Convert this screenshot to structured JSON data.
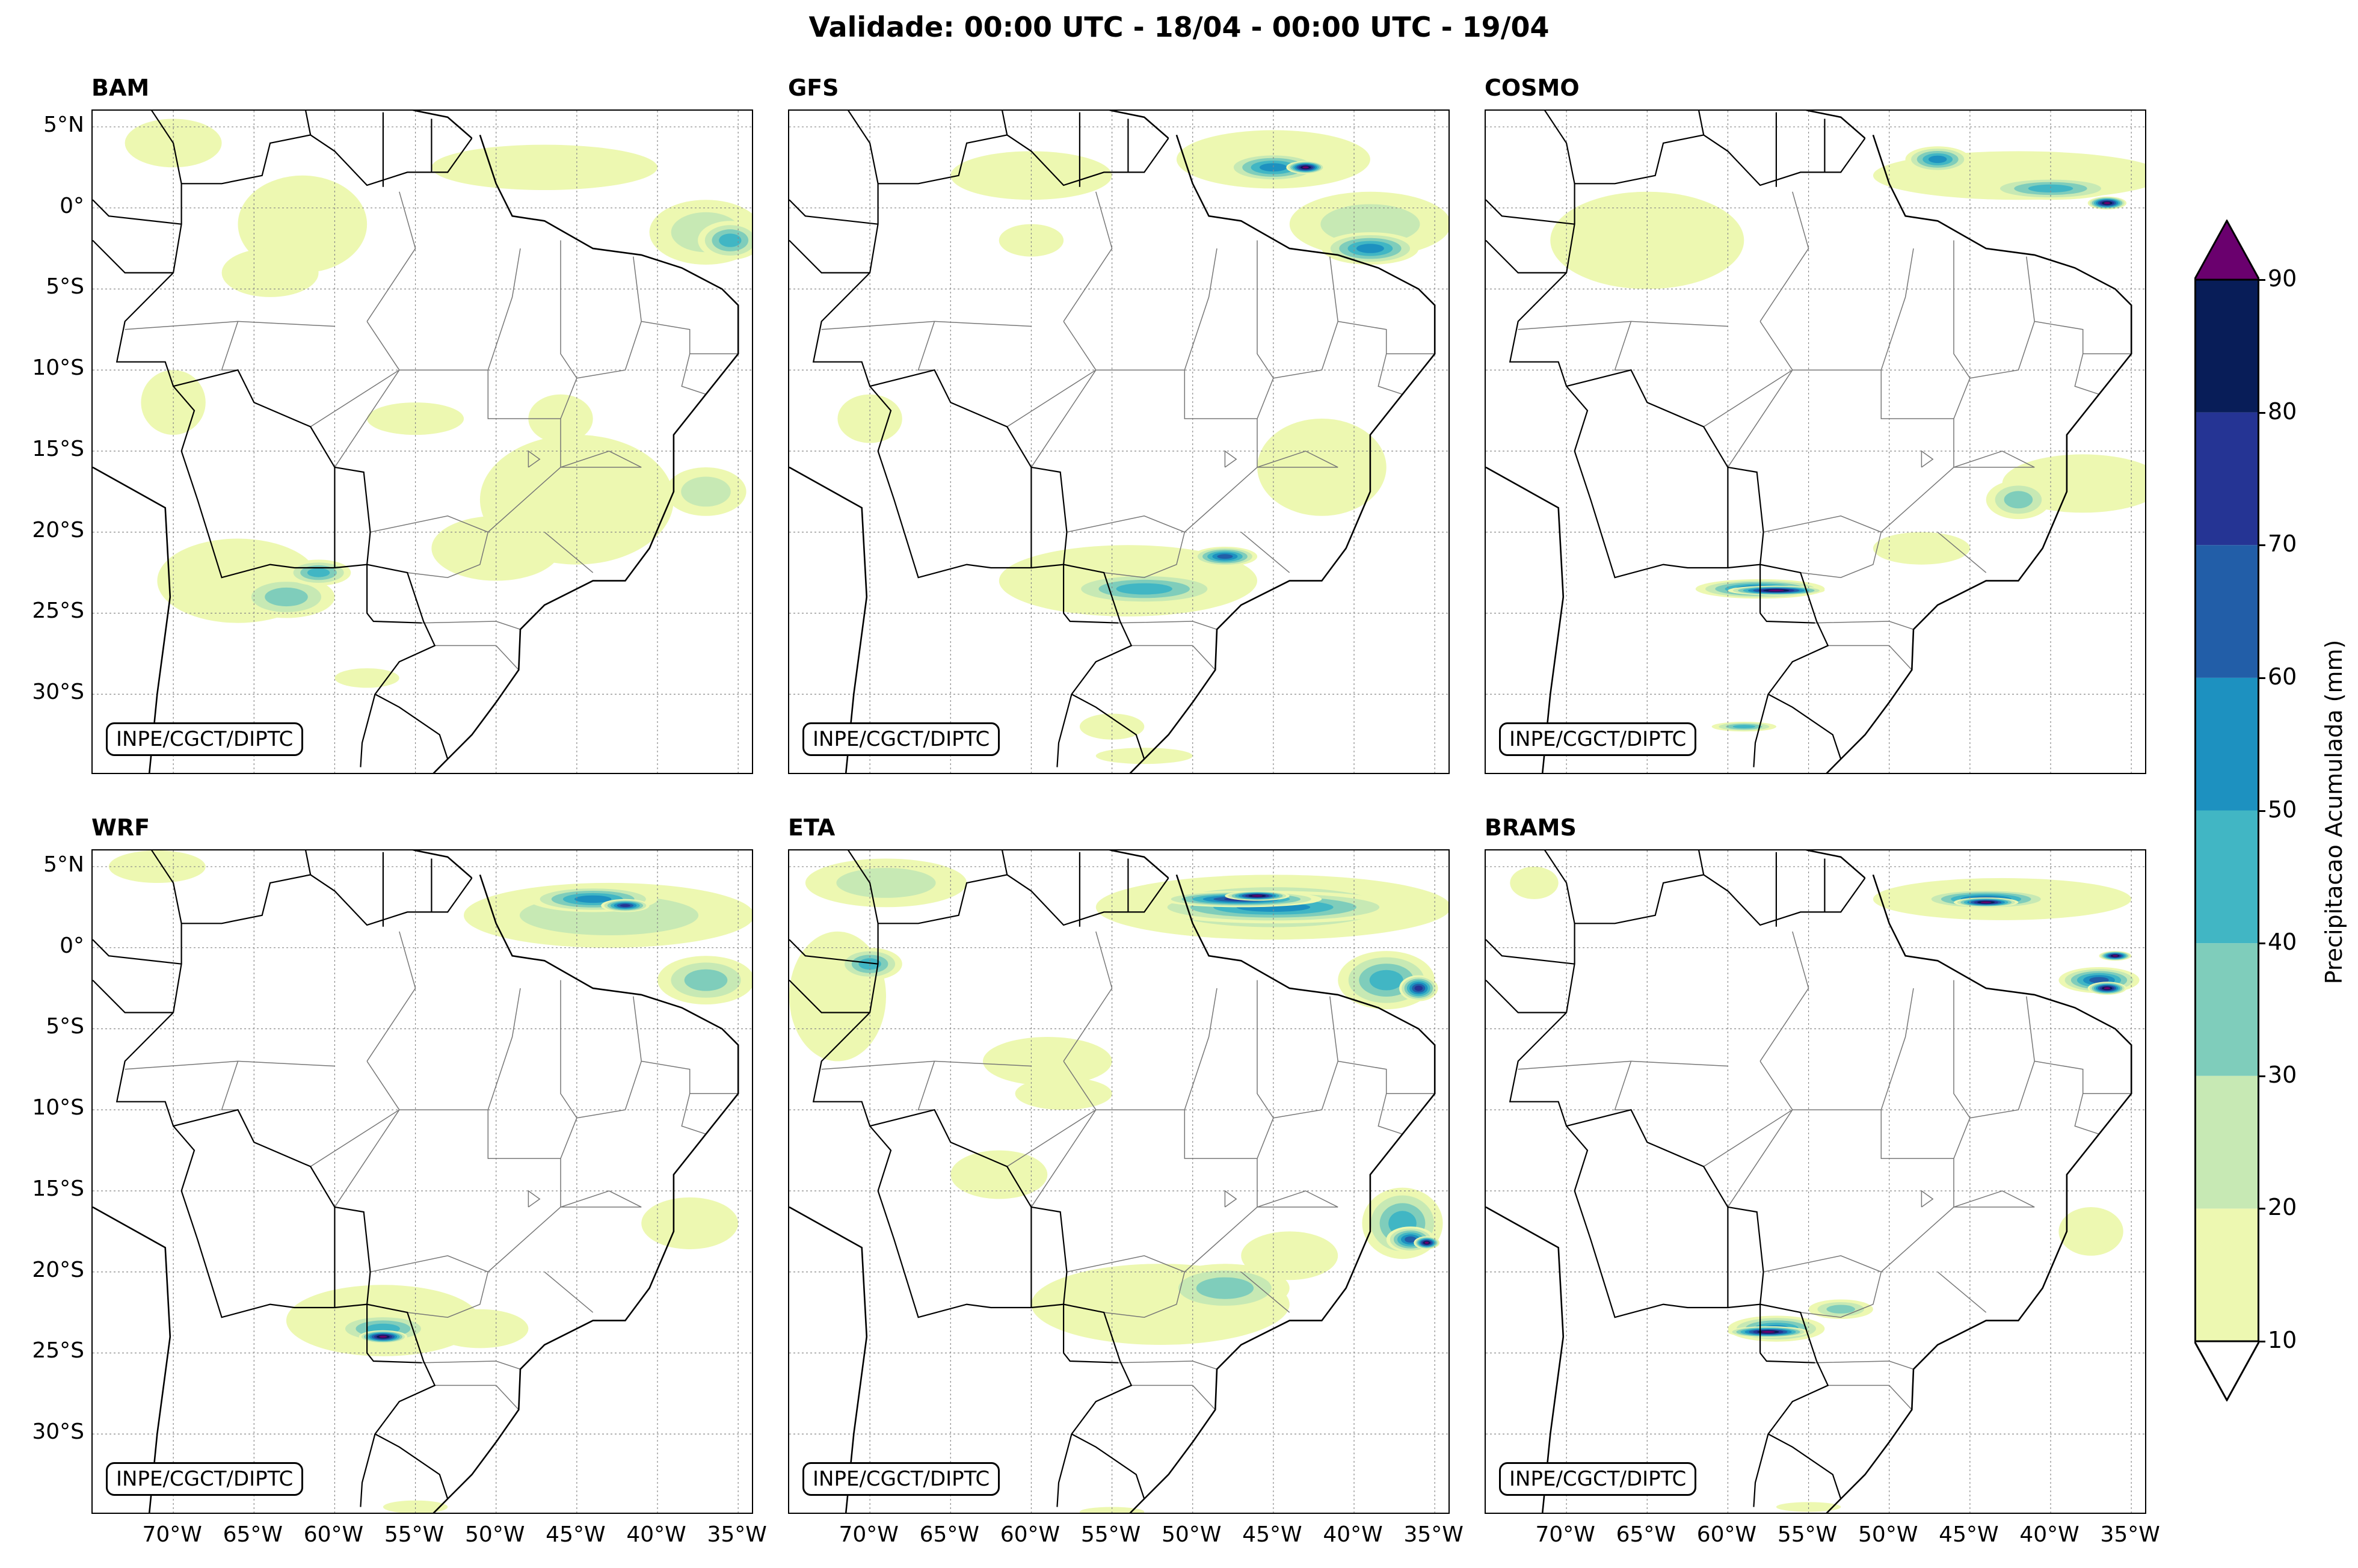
{
  "title": "Validade: 00:00 UTC - 18/04 - 00:00 UTC - 19/04",
  "credit": "INPE/CGCT/DIPTC",
  "panels": [
    {
      "name": "BAM"
    },
    {
      "name": "GFS"
    },
    {
      "name": "COSMO"
    },
    {
      "name": "WRF"
    },
    {
      "name": "ETA"
    },
    {
      "name": "BRAMS"
    }
  ],
  "lat_ticks": [
    "5°N",
    "0°",
    "5°S",
    "10°S",
    "15°S",
    "20°S",
    "25°S",
    "30°S"
  ],
  "lon_ticks": [
    "70°W",
    "65°W",
    "60°W",
    "55°W",
    "50°W",
    "45°W",
    "40°W",
    "35°W"
  ],
  "colorbar": {
    "label": "Precipitacao Acumulada (mm)",
    "ticks": [
      "10",
      "20",
      "30",
      "40",
      "50",
      "60",
      "70",
      "80",
      "90"
    ],
    "colors": [
      "#edf8b1",
      "#c7e9b4",
      "#7fcdbb",
      "#41b6c4",
      "#1d91c0",
      "#225ea8",
      "#253494",
      "#081d58"
    ],
    "over_color": "#6a006e",
    "under_color": "#ffffff"
  }
}
